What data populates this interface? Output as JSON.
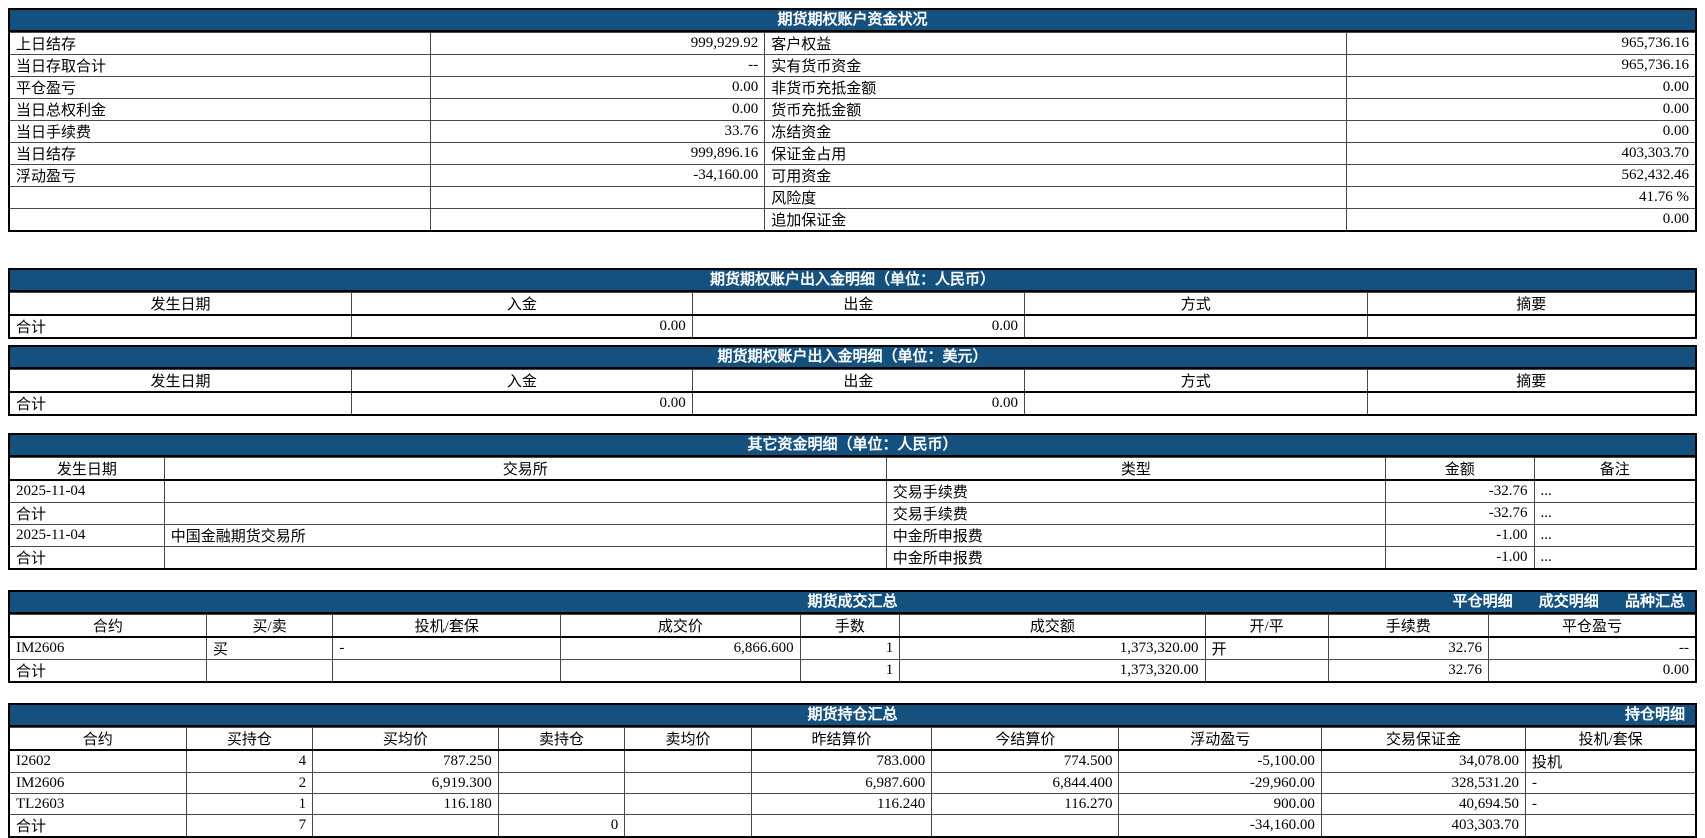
{
  "colors": {
    "titlebar_bg": "#15517e",
    "titlebar_text": "#ffffff",
    "table_border": "#000000"
  },
  "tables": {
    "fund_status": {
      "title": "期货期权账户资金状况",
      "rows": [
        [
          "上日结存",
          "999,929.92",
          "客户权益",
          "965,736.16"
        ],
        [
          "当日存取合计",
          "--",
          "实有货币资金",
          "965,736.16"
        ],
        [
          "平仓盈亏",
          "0.00",
          "非货币充抵金额",
          "0.00"
        ],
        [
          "当日总权利金",
          "0.00",
          "货币充抵金额",
          "0.00"
        ],
        [
          "当日手续费",
          "33.76",
          "冻结资金",
          "0.00"
        ],
        [
          "当日结存",
          "999,896.16",
          "保证金占用",
          "403,303.70"
        ],
        [
          "浮动盈亏",
          "-34,160.00",
          "可用资金",
          "562,432.46"
        ],
        [
          "",
          "",
          "风险度",
          "41.76 %"
        ],
        [
          "",
          "",
          "追加保证金",
          "0.00"
        ]
      ]
    },
    "cash_flow_cny": {
      "title": "期货期权账户出入金明细（单位：人民币）",
      "headers": [
        "发生日期",
        "入金",
        "出金",
        "方式",
        "摘要"
      ],
      "rows": [
        [
          "合计",
          "0.00",
          "0.00",
          "",
          ""
        ]
      ]
    },
    "cash_flow_usd": {
      "title": "期货期权账户出入金明细（单位：美元）",
      "headers": [
        "发生日期",
        "入金",
        "出金",
        "方式",
        "摘要"
      ],
      "rows": [
        [
          "合计",
          "0.00",
          "0.00",
          "",
          ""
        ]
      ]
    },
    "other_funds": {
      "title": "其它资金明细（单位：人民币）",
      "headers": [
        "发生日期",
        "交易所",
        "类型",
        "金额",
        "备注"
      ],
      "rows": [
        [
          "2025-11-04",
          "",
          "交易手续费",
          "-32.76",
          "..."
        ],
        [
          "合计",
          "",
          "交易手续费",
          "-32.76",
          "..."
        ],
        [
          "2025-11-04",
          "中国金融期货交易所",
          "中金所申报费",
          "-1.00",
          "..."
        ],
        [
          "合计",
          "",
          "中金所申报费",
          "-1.00",
          "..."
        ]
      ]
    },
    "trade_summary": {
      "title": "期货成交汇总",
      "links": [
        "平仓明细",
        "成交明细",
        "品种汇总"
      ],
      "headers": [
        "合约",
        "买/卖",
        "投机/套保",
        "成交价",
        "手数",
        "成交额",
        "开/平",
        "手续费",
        "平仓盈亏"
      ],
      "rows": [
        [
          "IM2606",
          "买",
          "-",
          "6,866.600",
          "1",
          "1,373,320.00",
          "开",
          "32.76",
          "--"
        ],
        [
          "合计",
          "",
          "",
          "",
          "1",
          "1,373,320.00",
          "",
          "32.76",
          "0.00"
        ]
      ]
    },
    "position_summary": {
      "title": "期货持仓汇总",
      "links": [
        "持仓明细"
      ],
      "headers": [
        "合约",
        "买持仓",
        "买均价",
        "卖持仓",
        "卖均价",
        "昨结算价",
        "今结算价",
        "浮动盈亏",
        "交易保证金",
        "投机/套保"
      ],
      "rows": [
        [
          "I2602",
          "4",
          "787.250",
          "",
          "",
          "783.000",
          "774.500",
          "-5,100.00",
          "34,078.00",
          "投机"
        ],
        [
          "IM2606",
          "2",
          "6,919.300",
          "",
          "",
          "6,987.600",
          "6,844.400",
          "-29,960.00",
          "328,531.20",
          "-"
        ],
        [
          "TL2603",
          "1",
          "116.180",
          "",
          "",
          "116.240",
          "116.270",
          "900.00",
          "40,694.50",
          "-"
        ],
        [
          "合计",
          "7",
          "",
          "0",
          "",
          "",
          "",
          "-34,160.00",
          "403,303.70",
          ""
        ]
      ]
    }
  }
}
